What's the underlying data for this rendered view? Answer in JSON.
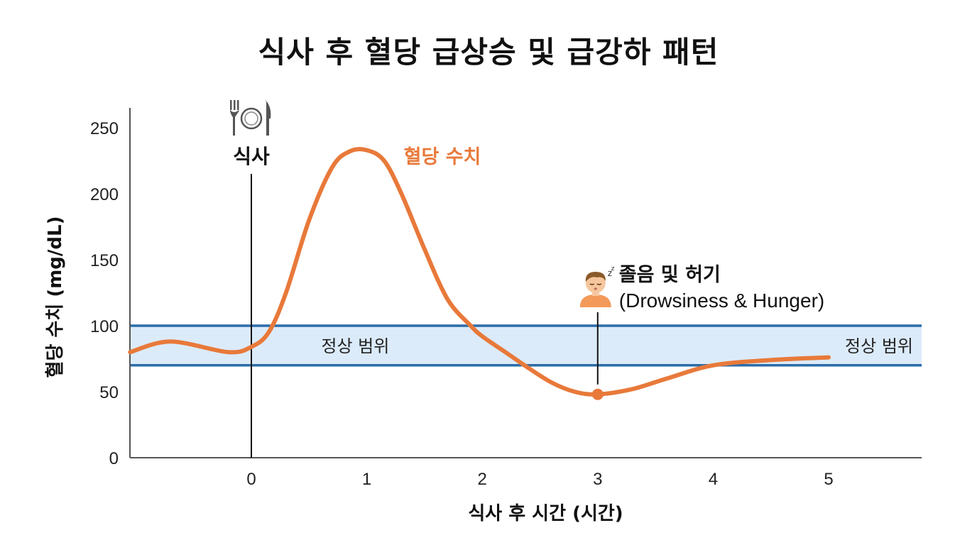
{
  "chart_data": {
    "type": "line",
    "title": "식사 후 혈당 급상승 및 급강하 패턴",
    "xlabel": "식사 후 시간 (시간)",
    "ylabel": "혈당 수치 (mg/dL)",
    "xlim": [
      -1.05,
      5.8
    ],
    "ylim": [
      0,
      250
    ],
    "x_ticks": [
      0,
      1,
      2,
      3,
      4,
      5
    ],
    "y_ticks": [
      0,
      50,
      100,
      150,
      200,
      250
    ],
    "grid": false,
    "normal_range": {
      "low": 70,
      "high": 100,
      "label": "정상 범위"
    },
    "series": [
      {
        "name": "혈당 수치",
        "color": "#E8793A",
        "x": [
          -1.05,
          -0.7,
          -0.2,
          0,
          0.15,
          0.3,
          0.5,
          0.7,
          0.85,
          1.0,
          1.15,
          1.3,
          1.5,
          1.7,
          1.9,
          2.0,
          2.2,
          2.4,
          2.6,
          2.8,
          3.0,
          3.3,
          3.6,
          4.0,
          4.5,
          5.0
        ],
        "y": [
          80,
          88,
          80,
          84,
          95,
          125,
          180,
          220,
          232,
          233,
          225,
          200,
          158,
          120,
          100,
          92,
          80,
          68,
          57,
          50,
          48,
          52,
          60,
          70,
          74,
          76
        ]
      }
    ],
    "events": [
      {
        "x": 0,
        "label": "식사",
        "icon": "plate-icon"
      },
      {
        "x": 3,
        "y": 48,
        "label": "졸음 및 허기",
        "sublabel": "(Drowsiness & Hunger)",
        "icon": "sleepy-person-icon"
      }
    ],
    "colors": {
      "curve": "#E8793A",
      "band_fill": "#DCEBFA",
      "band_line": "#2B6CA8",
      "axis": "#555555"
    }
  }
}
